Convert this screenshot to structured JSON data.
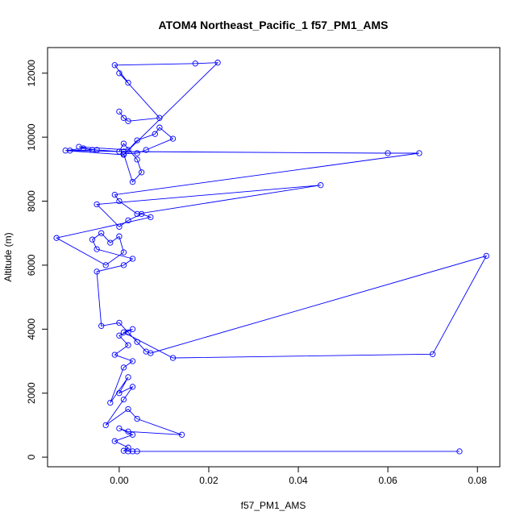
{
  "chart_data": {
    "type": "scatter",
    "title": "ATOM4 Northeast_Pacific_1 f57_PM1_AMS",
    "xlabel": "f57_PM1_AMS",
    "ylabel": "Altitude (m)",
    "xlim": [
      -0.016,
      0.085
    ],
    "ylim": [
      -300,
      12800
    ],
    "x_ticks": [
      0.0,
      0.02,
      0.04,
      0.06,
      0.08
    ],
    "x_tick_labels": [
      "0.00",
      "0.02",
      "0.04",
      "0.06",
      "0.08"
    ],
    "y_ticks": [
      0,
      2000,
      4000,
      6000,
      8000,
      10000,
      12000
    ],
    "y_tick_labels": [
      "0",
      "2000",
      "4000",
      "6000",
      "8000",
      "10000",
      "12000"
    ],
    "grid": false,
    "legend": "none",
    "color": "#0000ff",
    "series": [
      {
        "x": [
          0.076,
          0.004,
          0.002,
          0.003,
          0.001,
          0.002,
          -0.001,
          0.003,
          0.0,
          0.002,
          0.014,
          0.004,
          0.002,
          -0.003,
          0.001,
          0.003,
          0.0,
          0.002,
          -0.002,
          0.001,
          0.003,
          -0.001,
          0.002,
          0.0,
          0.003,
          0.001,
          0.012,
          0.07,
          0.082,
          0.007,
          0.006,
          0.004,
          0.002,
          0.0,
          -0.004,
          -0.005,
          0.001,
          0.003,
          -0.005,
          -0.006,
          -0.004,
          -0.002,
          0.0,
          0.001,
          -0.003,
          -0.014,
          0.007,
          0.005,
          0.002,
          0.0,
          -0.005,
          0.045,
          0.004,
          0.0,
          -0.001,
          0.067,
          0.06,
          0.001,
          -0.011,
          -0.006,
          -0.009,
          0.002,
          0.004,
          0.008,
          0.009,
          0.012,
          0.006,
          0.004,
          0.001,
          0.003,
          0.005,
          0.004,
          0.001,
          0.0,
          -0.005,
          -0.008,
          -0.012,
          0.001,
          0.022,
          0.017,
          -0.001,
          0.002,
          0.0,
          0.009,
          0.002,
          0.001,
          0.0
        ],
        "y": [
          180,
          180,
          180,
          180,
          200,
          300,
          500,
          700,
          900,
          800,
          700,
          1200,
          1500,
          1000,
          1800,
          2200,
          2000,
          2500,
          1700,
          2800,
          3000,
          3200,
          3500,
          3800,
          4000,
          3900,
          3100,
          3220,
          6290,
          3250,
          3300,
          3600,
          3900,
          4200,
          4100,
          5800,
          6000,
          6200,
          6500,
          6800,
          7000,
          6700,
          6900,
          6400,
          6000,
          6850,
          7500,
          7600,
          7400,
          7200,
          7900,
          8500,
          7600,
          8000,
          8200,
          9500,
          9500,
          9550,
          9580,
          9600,
          9700,
          9600,
          9900,
          10100,
          10300,
          9950,
          9600,
          9500,
          9480,
          8600,
          8900,
          9300,
          9800,
          9550,
          9600,
          9650,
          9580,
          9450,
          12330,
          12300,
          12250,
          11700,
          12000,
          10600,
          10500,
          10600,
          10800
        ]
      }
    ]
  }
}
